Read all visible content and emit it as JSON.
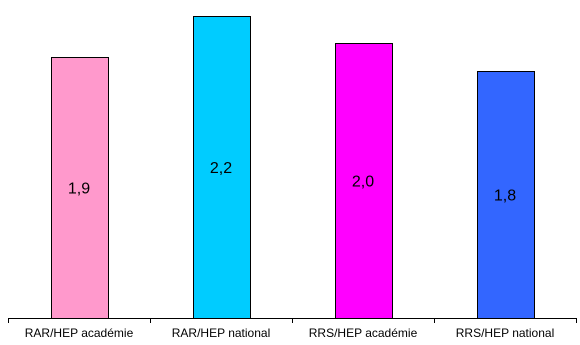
{
  "chart_data": {
    "type": "bar",
    "categories": [
      "RAR/HEP académie",
      "RAR/HEP national",
      "RRS/HEP académie",
      "RRS/HEP national"
    ],
    "values": [
      1.9,
      2.2,
      2.0,
      1.8
    ],
    "value_labels": [
      "1,9",
      "2,2",
      "2,0",
      "1,8"
    ],
    "colors": [
      "#ff99cc",
      "#00ccff",
      "#ff00ff",
      "#3366ff"
    ],
    "ylim": [
      0,
      2.3
    ],
    "grid": false,
    "legend": "none"
  }
}
